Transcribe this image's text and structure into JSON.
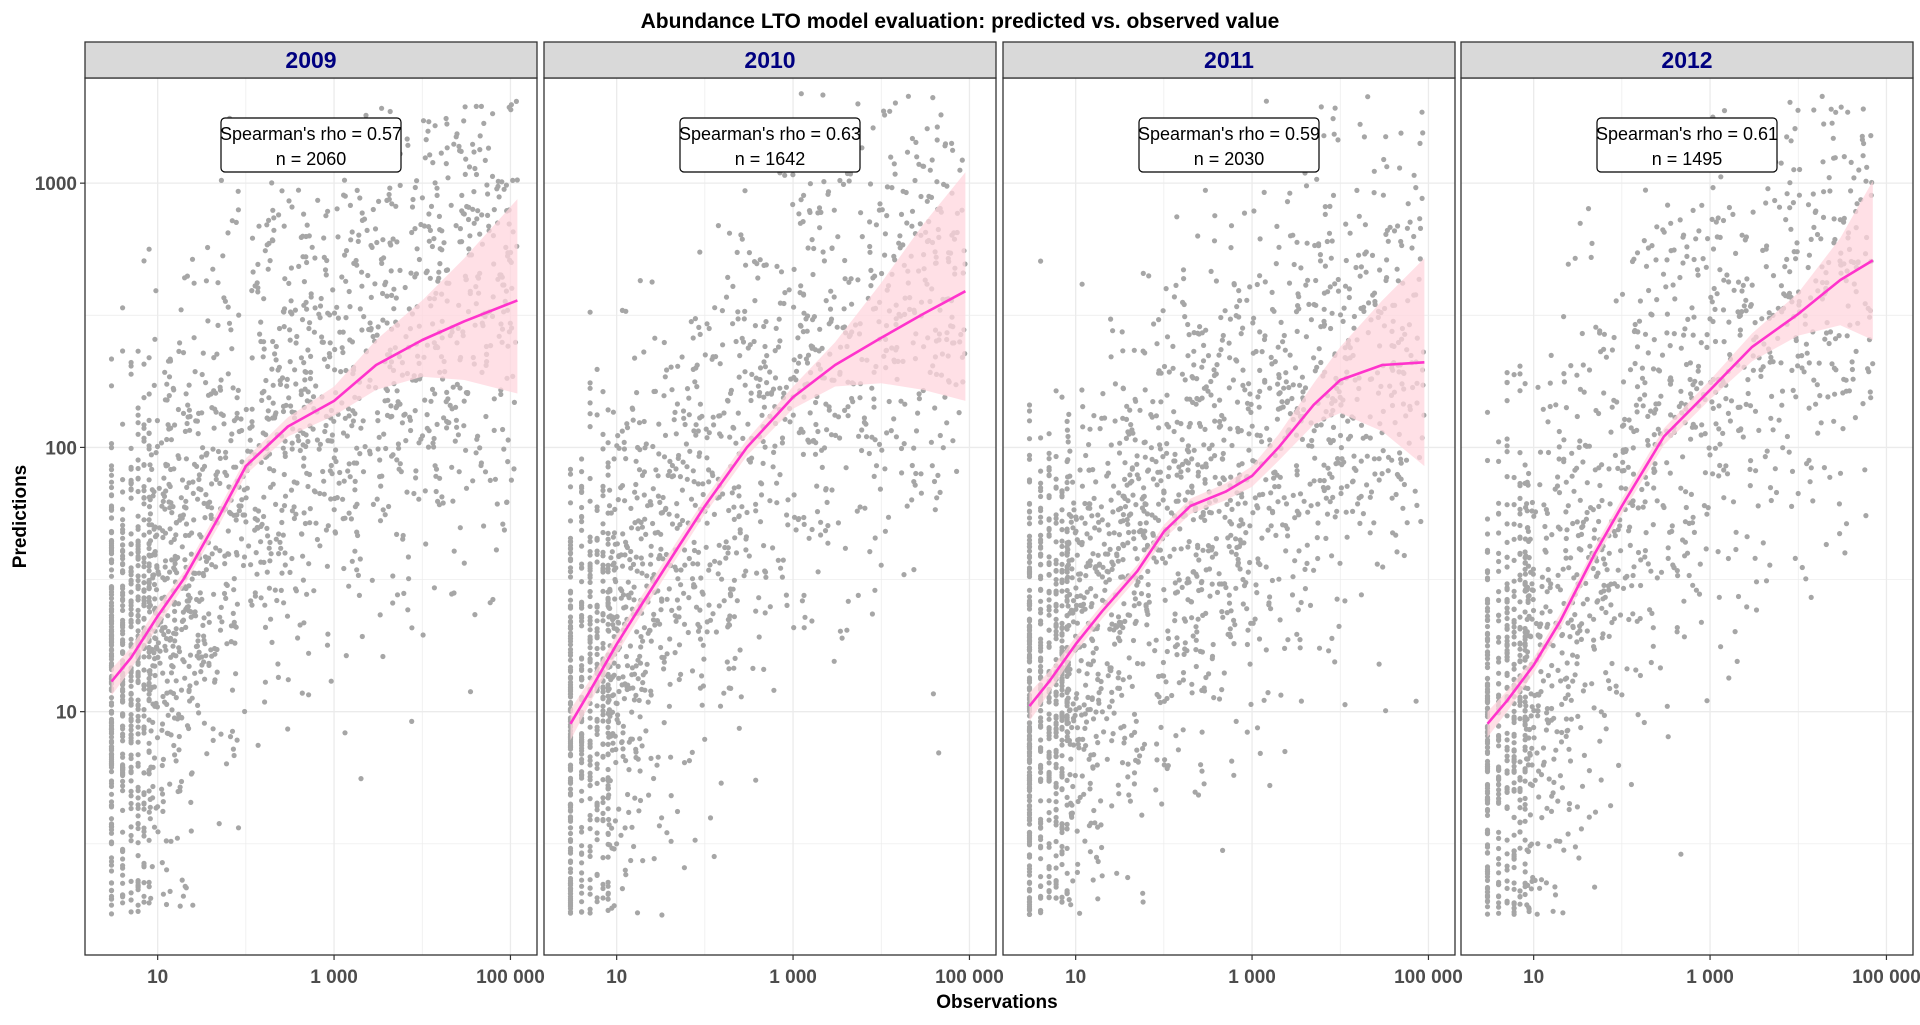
{
  "chart_data": {
    "type": "scatter",
    "title": "Abundance LTO model evaluation: predicted vs. observed value",
    "xlabel": "Observations",
    "ylabel": "Predictions",
    "x_scale": "log10",
    "y_scale": "log10",
    "xlim": [
      1.5,
      200000
    ],
    "ylim": [
      1.2,
      2500
    ],
    "x_ticks": [
      {
        "value": 10,
        "label": "10"
      },
      {
        "value": 1000,
        "label": "1 000"
      },
      {
        "value": 100000,
        "label": "100 000"
      }
    ],
    "y_ticks": [
      {
        "value": 10,
        "label": "10"
      },
      {
        "value": 100,
        "label": "100"
      },
      {
        "value": 1000,
        "label": "1000"
      }
    ],
    "grid": true,
    "colors": {
      "points": "#a6a6a6",
      "smooth_line": "#ff33cc",
      "confidence_band": "#ffd6de",
      "strip_background": "#d9d9d9",
      "strip_text": "#000080",
      "panel_border": "#333333",
      "grid": "#ebebeb"
    },
    "panels": [
      {
        "label": "2009",
        "annotation": {
          "line1": "Spearman's rho = 0.57",
          "line2": "n = 2060"
        },
        "n_points": 2060,
        "x_max": 120000,
        "smooth": {
          "x": [
            3,
            5,
            10,
            20,
            50,
            100,
            300,
            1000,
            3000,
            10000,
            30000,
            120000
          ],
          "y": [
            13,
            16,
            23,
            32,
            55,
            85,
            120,
            150,
            205,
            255,
            300,
            360
          ],
          "lower": [
            11.5,
            14.5,
            21,
            30,
            51,
            79,
            110,
            132,
            165,
            185,
            180,
            160
          ],
          "upper": [
            14.5,
            17.5,
            25,
            34,
            59,
            91,
            130,
            170,
            255,
            360,
            520,
            870
          ]
        }
      },
      {
        "label": "2010",
        "annotation": {
          "line1": "Spearman's rho = 0.63",
          "line2": "n = 1642"
        },
        "n_points": 1642,
        "x_max": 90000,
        "smooth": {
          "x": [
            3,
            5,
            10,
            20,
            50,
            100,
            300,
            1000,
            3000,
            10000,
            30000,
            90000
          ],
          "y": [
            9,
            12,
            18,
            26,
            42,
            60,
            100,
            155,
            205,
            260,
            320,
            390
          ],
          "lower": [
            7.8,
            10.8,
            16.5,
            24,
            39,
            56,
            93,
            140,
            170,
            175,
            165,
            150
          ],
          "upper": [
            10.2,
            13.2,
            19.5,
            28,
            45,
            64,
            107,
            170,
            250,
            420,
            700,
            1100
          ]
        }
      },
      {
        "label": "2011",
        "annotation": {
          "line1": "Spearman's rho = 0.59",
          "line2": "n = 2030"
        },
        "n_points": 2030,
        "x_max": 90000,
        "smooth": {
          "x": [
            3,
            5,
            10,
            20,
            50,
            100,
            200,
            500,
            1000,
            2000,
            5000,
            10000,
            30000,
            90000
          ],
          "y": [
            10.5,
            13,
            18,
            24,
            34,
            48,
            60,
            68,
            78,
            100,
            145,
            180,
            205,
            210
          ],
          "lower": [
            9.2,
            11.8,
            16.8,
            22.5,
            32,
            45,
            56,
            63,
            71,
            89,
            122,
            135,
            115,
            85
          ],
          "upper": [
            11.8,
            14.2,
            19.2,
            25.5,
            36,
            51,
            64,
            73,
            85,
            112,
            175,
            240,
            360,
            520
          ]
        }
      },
      {
        "label": "2012",
        "annotation": {
          "line1": "Spearman's rho = 0.61",
          "line2": "n = 1495"
        },
        "n_points": 1495,
        "x_max": 70000,
        "smooth": {
          "x": [
            3,
            5,
            10,
            20,
            50,
            100,
            300,
            1000,
            3000,
            10000,
            30000,
            70000
          ],
          "y": [
            9,
            11,
            15,
            22,
            40,
            60,
            110,
            165,
            240,
            320,
            430,
            510
          ],
          "lower": [
            8,
            10,
            14,
            20.5,
            37.5,
            56,
            102,
            152,
            212,
            265,
            290,
            255
          ],
          "upper": [
            10,
            12,
            16,
            23.5,
            42.5,
            64,
            118,
            180,
            270,
            385,
            620,
            1020
          ]
        }
      }
    ]
  }
}
